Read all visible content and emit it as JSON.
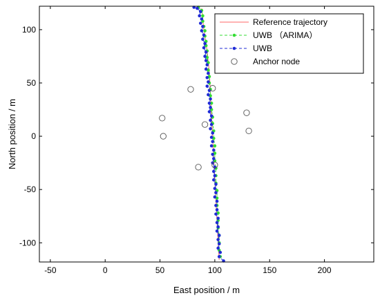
{
  "chart_data": {
    "type": "scatter",
    "title": "",
    "xlabel": "East position / m",
    "ylabel": "North position / m",
    "xlim": [
      -60,
      245
    ],
    "ylim": [
      -118,
      122
    ],
    "xticks": [
      -50,
      0,
      50,
      100,
      150,
      200
    ],
    "yticks": [
      -100,
      -50,
      0,
      50,
      100
    ],
    "grid": false,
    "legend_position": "top-right",
    "series": [
      {
        "name": "Reference trajectory",
        "kind": "line",
        "color": "#ff6666",
        "points": [
          [
            88,
            120
          ],
          [
            90,
            100
          ],
          [
            93,
            80
          ],
          [
            95,
            60
          ],
          [
            96,
            40
          ],
          [
            97,
            20
          ],
          [
            98,
            0
          ],
          [
            99,
            -20
          ],
          [
            100,
            -40
          ],
          [
            101,
            -60
          ],
          [
            102,
            -80
          ],
          [
            103,
            -100
          ],
          [
            104,
            -116
          ]
        ]
      },
      {
        "name": "UWB （ARIMA）",
        "kind": "dashed-line-markers",
        "color": "#33dd33",
        "points": [
          [
            85,
            121
          ],
          [
            88,
            118
          ],
          [
            89,
            113
          ],
          [
            89,
            108
          ],
          [
            90,
            103
          ],
          [
            91,
            99
          ],
          [
            91,
            94
          ],
          [
            92,
            89
          ],
          [
            92,
            85
          ],
          [
            93,
            80
          ],
          [
            93,
            74
          ],
          [
            94,
            69
          ],
          [
            94,
            62
          ],
          [
            95,
            56
          ],
          [
            95,
            50
          ],
          [
            96,
            44
          ],
          [
            96,
            38
          ],
          [
            97,
            31
          ],
          [
            97,
            25
          ],
          [
            98,
            18
          ],
          [
            98,
            12
          ],
          [
            99,
            5
          ],
          [
            99,
            -2
          ],
          [
            100,
            -9
          ],
          [
            100,
            -16
          ],
          [
            100,
            -23
          ],
          [
            101,
            -30
          ],
          [
            101,
            -37
          ],
          [
            101,
            -44
          ],
          [
            102,
            -51
          ],
          [
            102,
            -58
          ],
          [
            102,
            -65
          ],
          [
            103,
            -72
          ],
          [
            103,
            -79
          ],
          [
            103,
            -86
          ],
          [
            104,
            -93
          ],
          [
            104,
            -100
          ],
          [
            104,
            -107
          ],
          [
            105,
            -113
          ]
        ]
      },
      {
        "name": "UWB",
        "kind": "dashed-line-markers",
        "color": "#1f2bd6",
        "points": [
          [
            81,
            121
          ],
          [
            84,
            120
          ],
          [
            87,
            117
          ],
          [
            86,
            113
          ],
          [
            88,
            110
          ],
          [
            87,
            106
          ],
          [
            89,
            103
          ],
          [
            88,
            99
          ],
          [
            90,
            95
          ],
          [
            89,
            91
          ],
          [
            91,
            87
          ],
          [
            90,
            83
          ],
          [
            92,
            79
          ],
          [
            91,
            75
          ],
          [
            92,
            71
          ],
          [
            93,
            67
          ],
          [
            92,
            63
          ],
          [
            94,
            59
          ],
          [
            93,
            55
          ],
          [
            94,
            51
          ],
          [
            93,
            47
          ],
          [
            95,
            43
          ],
          [
            94,
            39
          ],
          [
            96,
            35
          ],
          [
            95,
            31
          ],
          [
            96,
            27
          ],
          [
            95,
            23
          ],
          [
            97,
            19
          ],
          [
            96,
            15
          ],
          [
            97,
            11
          ],
          [
            96,
            7
          ],
          [
            98,
            3
          ],
          [
            97,
            -1
          ],
          [
            98,
            -5
          ],
          [
            97,
            -9
          ],
          [
            99,
            -13
          ],
          [
            98,
            -17
          ],
          [
            99,
            -21
          ],
          [
            98,
            -25
          ],
          [
            100,
            -29
          ],
          [
            99,
            -33
          ],
          [
            100,
            -37
          ],
          [
            99,
            -41
          ],
          [
            101,
            -45
          ],
          [
            100,
            -49
          ],
          [
            101,
            -53
          ],
          [
            100,
            -57
          ],
          [
            102,
            -61
          ],
          [
            101,
            -65
          ],
          [
            102,
            -69
          ],
          [
            101,
            -73
          ],
          [
            103,
            -77
          ],
          [
            102,
            -81
          ],
          [
            103,
            -85
          ],
          [
            102,
            -89
          ],
          [
            104,
            -93
          ],
          [
            103,
            -97
          ],
          [
            104,
            -101
          ],
          [
            103,
            -105
          ],
          [
            105,
            -109
          ],
          [
            104,
            -113
          ],
          [
            108,
            -117
          ]
        ]
      },
      {
        "name": "Anchor node",
        "kind": "markers",
        "color": "#555555",
        "points": [
          [
            78,
            44
          ],
          [
            98,
            45
          ],
          [
            52,
            17
          ],
          [
            53,
            0
          ],
          [
            91,
            11
          ],
          [
            129,
            22
          ],
          [
            131,
            5
          ],
          [
            85,
            -29
          ],
          [
            100,
            -27
          ]
        ]
      }
    ]
  }
}
